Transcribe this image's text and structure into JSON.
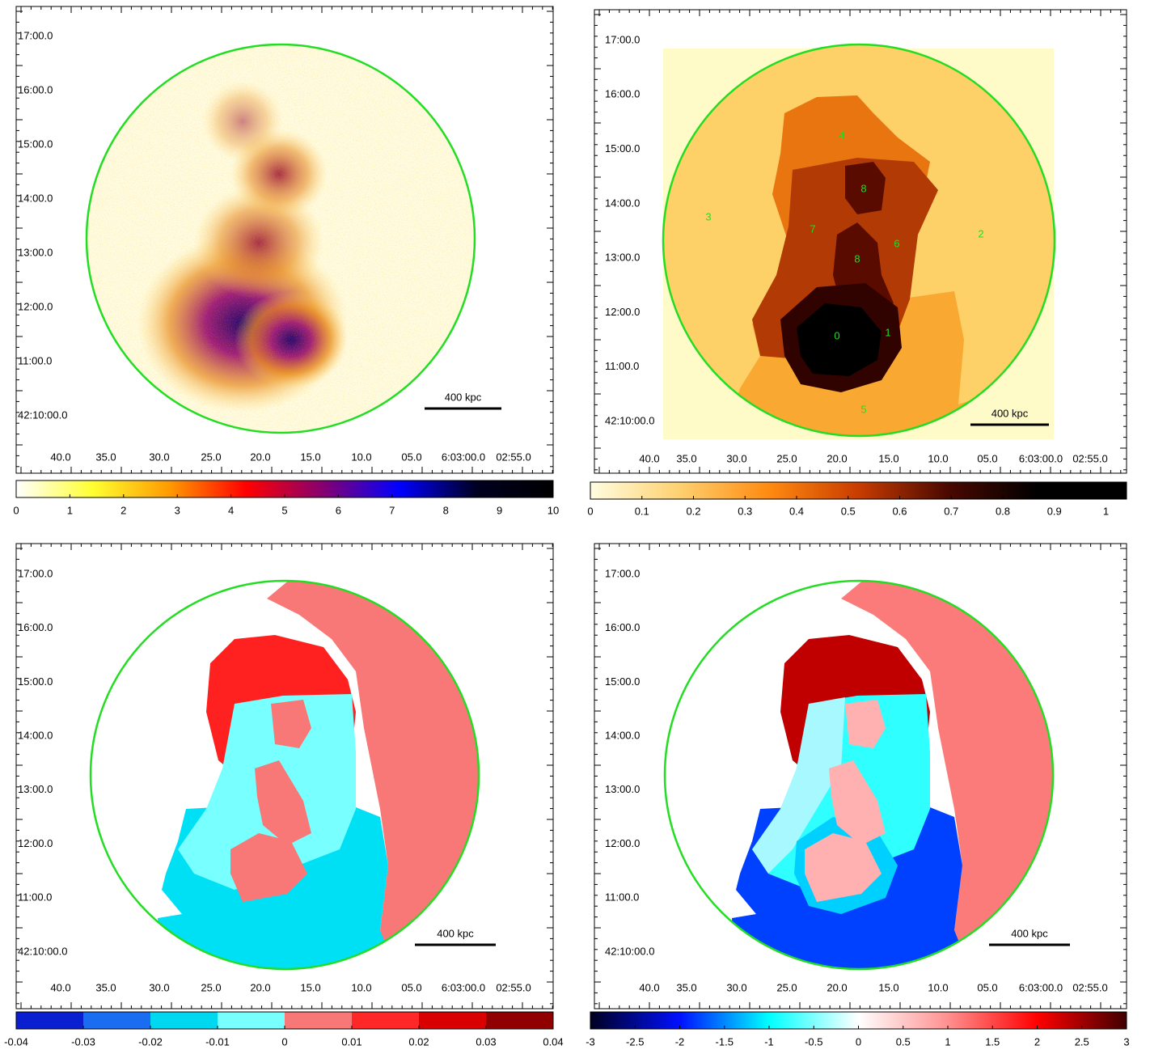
{
  "chart_data": [
    {
      "type": "map",
      "ytick_labels": [
        "17:00.0",
        "16:00.0",
        "15:00.0",
        "14:00.0",
        "13:00.0",
        "12:00.0",
        "11:00.0",
        "42:10:00.0"
      ],
      "xtick_labels": [
        "40.0",
        "35.0",
        "30.0",
        "25.0",
        "20.0",
        "15.0",
        "10.0",
        "05.0",
        "6:03:00.0",
        "02:55.0"
      ],
      "scale_bar": "400 kpc",
      "colorbar": {
        "lim": [
          0,
          10
        ],
        "ticks": [
          0,
          1,
          2,
          3,
          4,
          5,
          6,
          7,
          8,
          9,
          10
        ],
        "colors": [
          "#ffffff",
          "#ffff30",
          "#ff9a00",
          "#ff0000",
          "#850070",
          "#0000ff",
          "#000020",
          "#000000"
        ],
        "discrete": false
      }
    },
    {
      "type": "map",
      "ytick_labels": [
        "17:00.0",
        "16:00.0",
        "15:00.0",
        "14:00.0",
        "13:00.0",
        "12:00.0",
        "11:00.0",
        "42:10:00.0"
      ],
      "xtick_labels": [
        "40.0",
        "35.0",
        "30.0",
        "25.0",
        "20.0",
        "15.0",
        "10.0",
        "05.0",
        "6:03:00.0",
        "02:55.0"
      ],
      "scale_bar": "400 kpc",
      "region_labels": [
        "4",
        "8",
        "7",
        "8",
        "6",
        "2",
        "3",
        "0",
        "1",
        "5"
      ],
      "colorbar": {
        "lim": [
          0,
          1.04
        ],
        "ticks": [
          0,
          0.1,
          0.2,
          0.3,
          0.4,
          0.5,
          0.6,
          0.7,
          0.8,
          0.9,
          1
        ],
        "colors": [
          "#fffde0",
          "#ffd070",
          "#ff8a10",
          "#c83c00",
          "#4a0800",
          "#000000",
          "#000000"
        ],
        "discrete": false
      }
    },
    {
      "type": "map",
      "ytick_labels": [
        "17:00.0",
        "16:00.0",
        "15:00.0",
        "14:00.0",
        "13:00.0",
        "12:00.0",
        "11:00.0",
        "42:10:00.0"
      ],
      "xtick_labels": [
        "40.0",
        "35.0",
        "30.0",
        "25.0",
        "20.0",
        "15.0",
        "10.0",
        "05.0",
        "6:03:00.0",
        "02:55.0"
      ],
      "scale_bar": "400 kpc",
      "colorbar": {
        "lim": [
          -0.04,
          0.04
        ],
        "ticks": [
          -0.04,
          -0.03,
          -0.02,
          -0.01,
          0,
          0.01,
          0.02,
          0.03,
          0.04
        ],
        "colors": [
          "#0a1fcf",
          "#1a6cf0",
          "#00d8f0",
          "#78ffff",
          "#f87878",
          "#ff2828",
          "#d80000",
          "#900000"
        ],
        "discrete": true
      }
    },
    {
      "type": "map",
      "ytick_labels": [
        "17:00.0",
        "16:00.0",
        "15:00.0",
        "14:00.0",
        "13:00.0",
        "12:00.0",
        "11:00.0",
        "42:10:00.0"
      ],
      "xtick_labels": [
        "40.0",
        "35.0",
        "30.0",
        "25.0",
        "20.0",
        "15.0",
        "10.0",
        "05.0",
        "6:03:00.0",
        "02:55.0"
      ],
      "scale_bar": "400 kpc",
      "colorbar": {
        "lim": [
          -3,
          3
        ],
        "ticks": [
          -3,
          -2.5,
          -2,
          -1.5,
          -1,
          -0.5,
          0,
          0.5,
          1,
          1.5,
          2,
          2.5,
          3
        ],
        "colors": [
          "#000020",
          "#0010ff",
          "#00ffff",
          "#ffffff",
          "#ff9090",
          "#ff0000",
          "#400000"
        ],
        "discrete": false
      }
    }
  ]
}
